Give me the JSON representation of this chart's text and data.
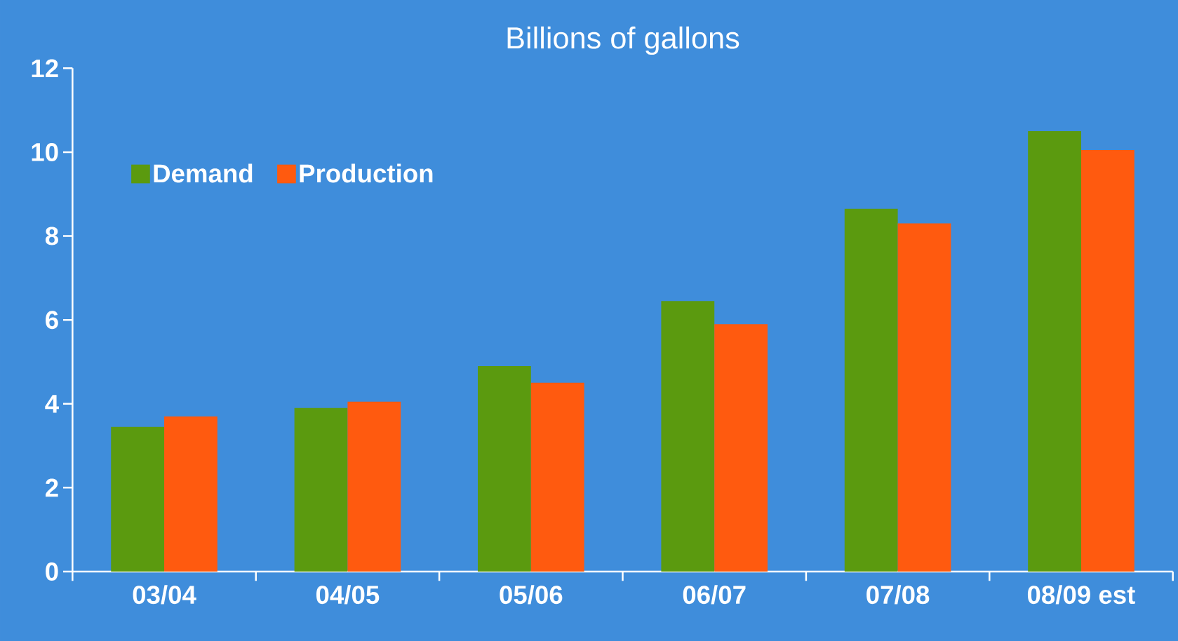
{
  "chart_data": {
    "type": "bar",
    "title": "Billions of gallons",
    "categories": [
      "03/04",
      "04/05",
      "05/06",
      "06/07",
      "07/08",
      "08/09 est"
    ],
    "series": [
      {
        "name": "Demand",
        "color": "#5b9a0f",
        "values": [
          3.45,
          3.9,
          4.9,
          6.45,
          8.65,
          10.5
        ]
      },
      {
        "name": "Production",
        "color": "#ff5a0f",
        "values": [
          3.7,
          4.05,
          4.5,
          5.9,
          8.3,
          10.05
        ]
      }
    ],
    "ylim": [
      0,
      12
    ],
    "yticks": [
      0,
      2,
      4,
      6,
      8,
      10,
      12
    ],
    "legend": "top left"
  }
}
